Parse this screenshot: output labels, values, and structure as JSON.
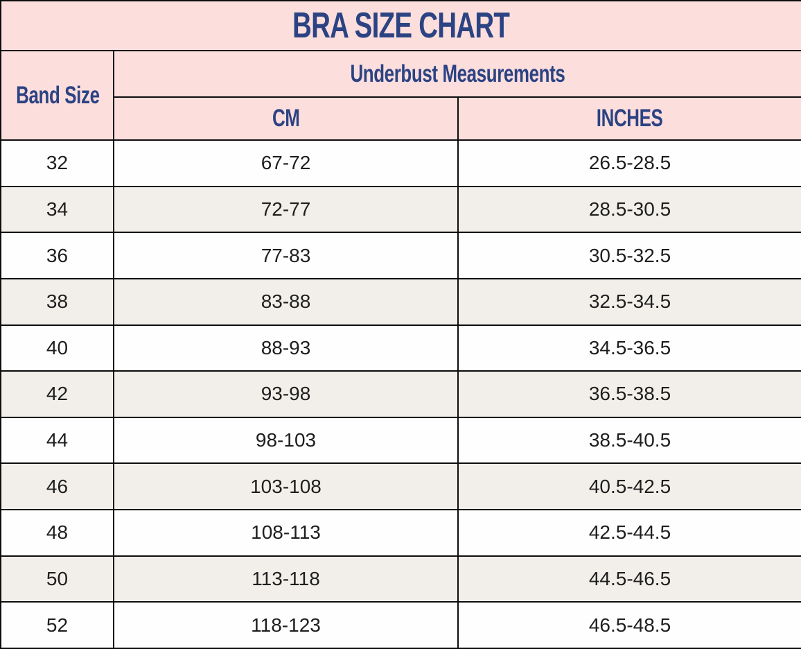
{
  "title": "BRA SIZE CHART",
  "header": {
    "band_size": "Band Size",
    "underbust": "Underbust Measurements",
    "cm": "CM",
    "inches": "INCHES"
  },
  "rows": [
    {
      "band": "32",
      "cm": "67-72",
      "inches": "26.5-28.5"
    },
    {
      "band": "34",
      "cm": "72-77",
      "inches": "28.5-30.5"
    },
    {
      "band": "36",
      "cm": "77-83",
      "inches": "30.5-32.5"
    },
    {
      "band": "38",
      "cm": "83-88",
      "inches": "32.5-34.5"
    },
    {
      "band": "40",
      "cm": "88-93",
      "inches": "34.5-36.5"
    },
    {
      "band": "42",
      "cm": "93-98",
      "inches": "36.5-38.5"
    },
    {
      "band": "44",
      "cm": "98-103",
      "inches": "38.5-40.5"
    },
    {
      "band": "46",
      "cm": "103-108",
      "inches": "40.5-42.5"
    },
    {
      "band": "48",
      "cm": "108-113",
      "inches": "42.5-44.5"
    },
    {
      "band": "50",
      "cm": "113-118",
      "inches": "44.5-46.5"
    },
    {
      "band": "52",
      "cm": "118-123",
      "inches": "46.5-48.5"
    }
  ],
  "colors": {
    "header_pink": "#fcdedd",
    "heading_blue": "#2b4382",
    "row_alternate": "#f2efea",
    "grid_border": "#0d0d0d",
    "body_text": "#1e1e1e"
  },
  "chart_data": {
    "type": "table",
    "title": "BRA SIZE CHART",
    "columns": [
      "Band Size",
      "Underbust Measurements (CM)",
      "Underbust Measurements (INCHES)"
    ],
    "rows": [
      [
        "32",
        "67-72",
        "26.5-28.5"
      ],
      [
        "34",
        "72-77",
        "28.5-30.5"
      ],
      [
        "36",
        "77-83",
        "30.5-32.5"
      ],
      [
        "38",
        "83-88",
        "32.5-34.5"
      ],
      [
        "40",
        "88-93",
        "34.5-36.5"
      ],
      [
        "42",
        "93-98",
        "36.5-38.5"
      ],
      [
        "44",
        "98-103",
        "38.5-40.5"
      ],
      [
        "46",
        "103-108",
        "40.5-42.5"
      ],
      [
        "48",
        "108-113",
        "42.5-44.5"
      ],
      [
        "50",
        "113-118",
        "44.5-46.5"
      ],
      [
        "52",
        "118-123",
        "46.5-48.5"
      ]
    ],
    "layout": {
      "band_size_cm_step": 5,
      "inches_step": 2,
      "striped_rows": true,
      "header_merged": "Band Size spans two header rows; Underbust Measurements spans CM and INCHES columns"
    }
  }
}
